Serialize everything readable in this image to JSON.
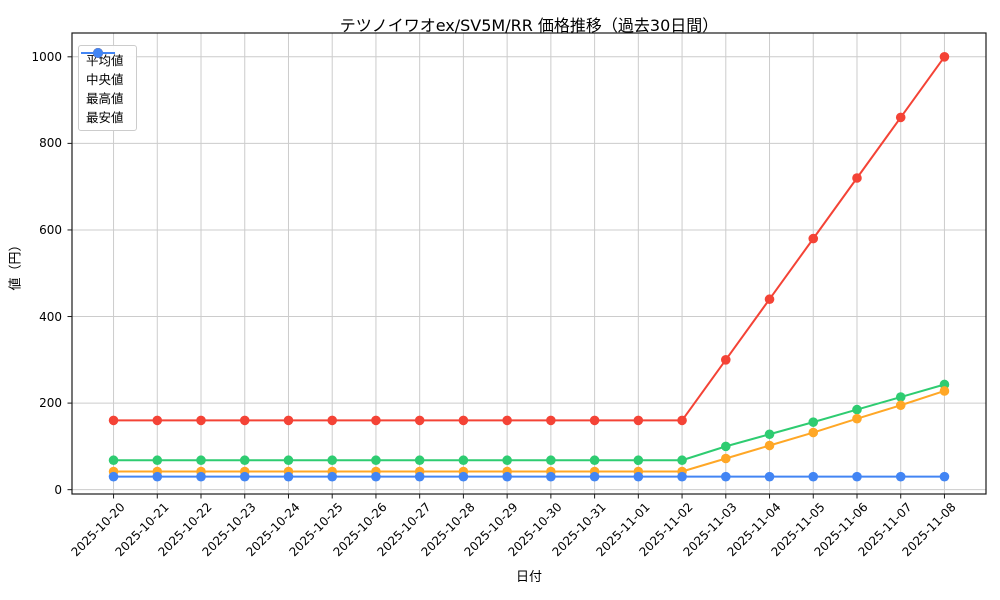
{
  "title": "テツノイワオex/SV5M/RR  価格推移（過去30日間）",
  "chart_data": {
    "type": "line",
    "title": "テツノイワオex/SV5M/RR  価格推移（過去30日間）",
    "xlabel": "日付",
    "ylabel": "値（円）",
    "ylim": [
      -10,
      1055
    ],
    "yticks": [
      0,
      200,
      400,
      600,
      800,
      1000
    ],
    "grid": true,
    "legend_position": "upper-left",
    "grid_color": "#cccccc",
    "spine_color": "#1a1a1a",
    "categories": [
      "2025-10-20",
      "2025-10-21",
      "2025-10-22",
      "2025-10-23",
      "2025-10-24",
      "2025-10-25",
      "2025-10-26",
      "2025-10-27",
      "2025-10-28",
      "2025-10-29",
      "2025-10-30",
      "2025-10-31",
      "2025-11-01",
      "2025-11-02",
      "2025-11-03",
      "2025-11-04",
      "2025-11-05",
      "2025-11-06",
      "2025-11-07",
      "2025-11-08"
    ],
    "series": [
      {
        "name": "平均値",
        "key": "average",
        "color": "#2ecc71",
        "values": [
          68,
          68,
          68,
          68,
          68,
          68,
          68,
          68,
          68,
          68,
          68,
          68,
          68,
          68,
          100,
          128,
          156,
          185,
          214,
          243
        ]
      },
      {
        "name": "中央値",
        "key": "median",
        "color": "#ffa726",
        "values": [
          42,
          42,
          42,
          42,
          42,
          42,
          42,
          42,
          42,
          42,
          42,
          42,
          42,
          42,
          72,
          102,
          132,
          164,
          195,
          228
        ]
      },
      {
        "name": "最高値",
        "key": "max",
        "color": "#f44336",
        "values": [
          160,
          160,
          160,
          160,
          160,
          160,
          160,
          160,
          160,
          160,
          160,
          160,
          160,
          160,
          300,
          440,
          580,
          720,
          860,
          1000
        ]
      },
      {
        "name": "最安値",
        "key": "min",
        "color": "#4285f4",
        "values": [
          30,
          30,
          30,
          30,
          30,
          30,
          30,
          30,
          30,
          30,
          30,
          30,
          30,
          30,
          30,
          30,
          30,
          30,
          30,
          30
        ]
      }
    ]
  }
}
